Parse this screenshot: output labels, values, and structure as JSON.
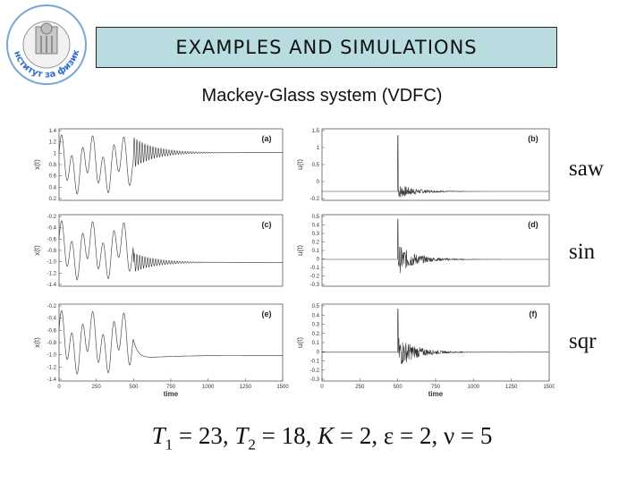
{
  "title": "EXAMPLES AND SIMULATIONS",
  "subtitle": "Mackey-Glass system (VDFC)",
  "row_labels": [
    "saw",
    "sin",
    "sqr"
  ],
  "params": {
    "T1_symbol": "T",
    "T1_sub": "1",
    "T1_value": "= 23,",
    "T2_symbol": "T",
    "T2_sub": "2",
    "T2_value": "= 18,",
    "K_symbol": "K",
    "K_value": "= 2,",
    "eps_text": "ε = 2,",
    "nu_text": "ν = 5"
  },
  "logo": {
    "text": "Институт за физику"
  },
  "chart_data": [
    {
      "type": "line",
      "panel": "(a)",
      "ylabel": "x(t)",
      "xlabel": "",
      "xlim": [
        0,
        1500
      ],
      "ylim": [
        0.2,
        1.4
      ],
      "yticks": [
        "1.4",
        "1.2",
        "1",
        "0.8",
        "0.6",
        "0.4",
        "0.2"
      ],
      "description_values": {
        "converges_to": 1.0,
        "control_on_at": 500
      }
    },
    {
      "type": "line",
      "panel": "(b)",
      "ylabel": "u(t)",
      "xlabel": "",
      "xlim": [
        0,
        1500
      ],
      "ylim": [
        -0.2,
        1.4
      ],
      "yticks": [
        "1.5",
        "1",
        "0.5",
        "0",
        "-0.2"
      ],
      "description_values": {
        "spike_at": 500
      }
    },
    {
      "type": "line",
      "panel": "(c)",
      "ylabel": "x(t)",
      "xlabel": "",
      "xlim": [
        0,
        1500
      ],
      "ylim": [
        -1.4,
        -0.2
      ],
      "yticks": [
        "-0.2",
        "-0.4",
        "-0.6",
        "-0.8",
        "-1.0",
        "-1.2",
        "-1.4"
      ],
      "description_values": {
        "converges_to": -1.0,
        "control_on_at": 500
      }
    },
    {
      "type": "line",
      "panel": "(d)",
      "ylabel": "u(t)",
      "xlabel": "",
      "xlim": [
        0,
        1500
      ],
      "ylim": [
        -0.3,
        0.5
      ],
      "yticks": [
        "0.5",
        "0.4",
        "0.3",
        "0.2",
        "0.1",
        "0",
        "-0.1",
        "-0.2",
        "-0.3"
      ],
      "description_values": {
        "spike_at": 500
      }
    },
    {
      "type": "line",
      "panel": "(e)",
      "ylabel": "x(t)",
      "xlabel": "time",
      "xlim": [
        0,
        1500
      ],
      "ylim": [
        -1.4,
        -0.2
      ],
      "yticks": [
        "-0.2",
        "-0.4",
        "-0.6",
        "-0.8",
        "-1.0",
        "-1.2",
        "-1.4"
      ],
      "xticks": [
        "0",
        "250",
        "500",
        "750",
        "1000",
        "1250",
        "1500"
      ],
      "description_values": {
        "converges_to": -1.0,
        "control_on_at": 500
      }
    },
    {
      "type": "line",
      "panel": "(f)",
      "ylabel": "u(t)",
      "xlabel": "time",
      "xlim": [
        0,
        1500
      ],
      "ylim": [
        -0.3,
        0.5
      ],
      "yticks": [
        "0.5",
        "0.4",
        "0.3",
        "0.2",
        "0.1",
        "0",
        "-0.1",
        "-0.2",
        "-0.3"
      ],
      "xticks": [
        "0",
        "250",
        "500",
        "750",
        "1000",
        "1250",
        "1500"
      ],
      "description_values": {
        "spike_at": 500
      }
    }
  ]
}
